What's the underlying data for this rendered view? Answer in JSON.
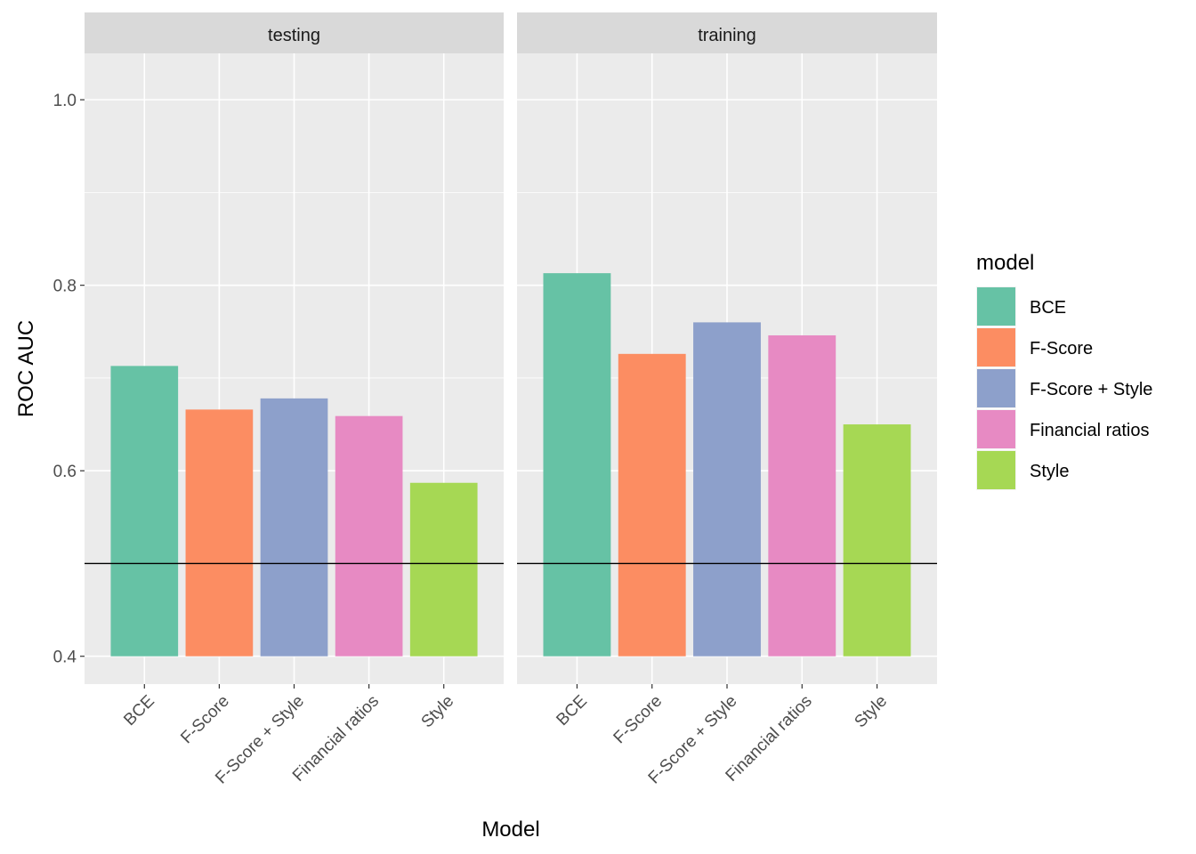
{
  "chart_data": {
    "type": "bar",
    "xlabel": "Model",
    "ylabel": "ROC AUC",
    "ylim": [
      0.37,
      1.05
    ],
    "y_ticks": [
      "0.4",
      "0.6",
      "0.8",
      "1.0"
    ],
    "y_tick_values": [
      0.4,
      0.6,
      0.8,
      1.0
    ],
    "bar_base": 0.4,
    "reference_line": 0.5,
    "categories": [
      "BCE",
      "F-Score",
      "F-Score + Style",
      "Financial ratios",
      "Style"
    ],
    "colors": [
      "#66C2A5",
      "#FC8D62",
      "#8DA0CB",
      "#E78AC3",
      "#A6D854"
    ],
    "panel_background": "#EBEBEB",
    "strip_background": "#D9D9D9",
    "facets": [
      {
        "label": "testing",
        "values": [
          0.713,
          0.666,
          0.678,
          0.659,
          0.587
        ]
      },
      {
        "label": "training",
        "values": [
          0.813,
          0.726,
          0.76,
          0.746,
          0.65
        ]
      }
    ],
    "legend": {
      "title": "model",
      "position": "right",
      "items": [
        "BCE",
        "F-Score",
        "F-Score + Style",
        "Financial ratios",
        "Style"
      ]
    },
    "grid": true
  }
}
